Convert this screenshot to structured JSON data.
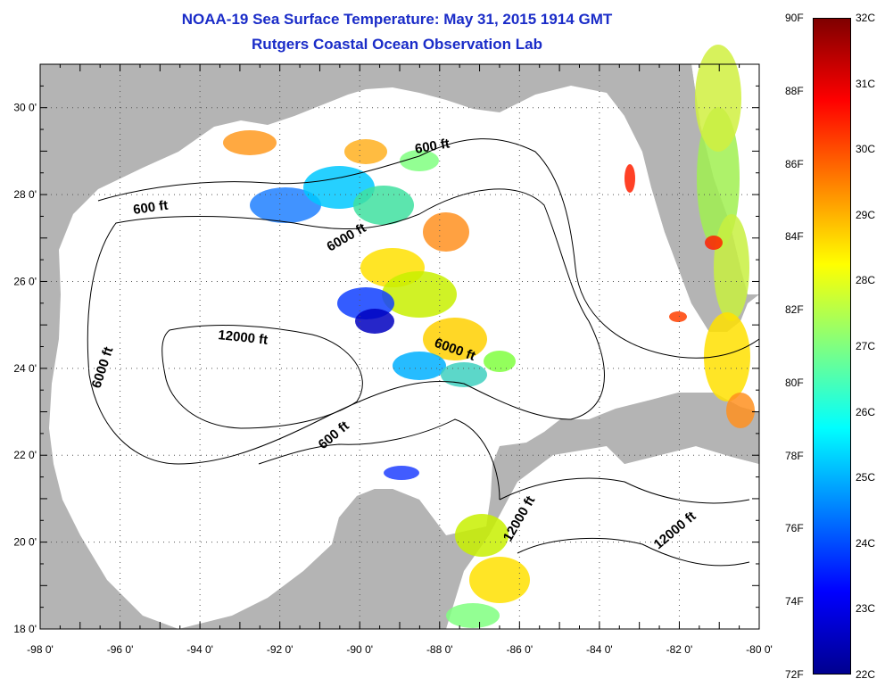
{
  "title": "NOAA-19 Sea Surface Temperature:  May 31, 2015 1914 GMT",
  "subtitle": "Rutgers Coastal Ocean Observation Lab",
  "map": {
    "lat_range": [
      18,
      31
    ],
    "lon_range": [
      -98,
      -80
    ],
    "lat_ticks": [
      "30 0'",
      "28 0'",
      "26 0'",
      "24 0'",
      "22 0'",
      "20 0'",
      "18 0'"
    ],
    "lon_ticks": [
      "-98 0'",
      "-96 0'",
      "-94 0'",
      "-92 0'",
      "-90 0'",
      "-88 0'",
      "-86 0'",
      "-84 0'",
      "-82 0'",
      "-80 0'"
    ],
    "grid": "dotted",
    "land_color": "#b4b4b4",
    "ocean_nodata_color": "#ffffff"
  },
  "contour_labels": [
    "600 ft",
    "600 ft",
    "600 ft",
    "6000 ft",
    "6000 ft",
    "6000 ft",
    "12000 ft",
    "12000 ft",
    "12000 ft"
  ],
  "colorbar": {
    "f_labels": [
      "90F",
      "88F",
      "86F",
      "84F",
      "82F",
      "80F",
      "78F",
      "76F",
      "74F",
      "72F"
    ],
    "c_labels": [
      "32C",
      "31C",
      "30C",
      "29C",
      "28C",
      "27C",
      "26C",
      "25C",
      "24C",
      "23C",
      "22C"
    ],
    "colors": [
      "#7f0000",
      "#ff0000",
      "#ff8000",
      "#ffff00",
      "#80ff80",
      "#00ffff",
      "#0080ff",
      "#0000ff",
      "#00008f"
    ]
  }
}
